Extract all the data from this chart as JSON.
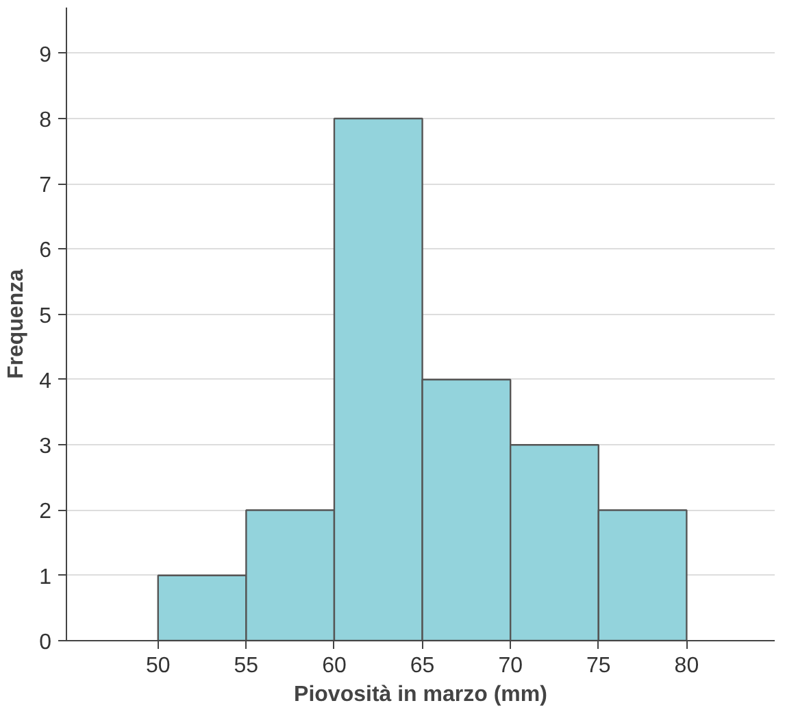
{
  "chart_data": {
    "type": "histogram",
    "xlabel": "Piovosità in marzo (mm)",
    "ylabel": "Frequenza",
    "bins": [
      50,
      55,
      60,
      65,
      70,
      75,
      80
    ],
    "values": [
      1,
      2,
      8,
      4,
      3,
      2
    ],
    "color": "#93d3dc",
    "xlim": [
      44.8,
      85
    ],
    "xticks": [
      50,
      55,
      60,
      65,
      70,
      75,
      80
    ],
    "annotations": [
      "0"
    ],
    "ylim": [
      0,
      9.7
    ],
    "yticks": [
      0,
      1,
      2,
      3,
      4,
      5,
      6,
      7,
      8,
      9
    ],
    "grid": "y"
  }
}
